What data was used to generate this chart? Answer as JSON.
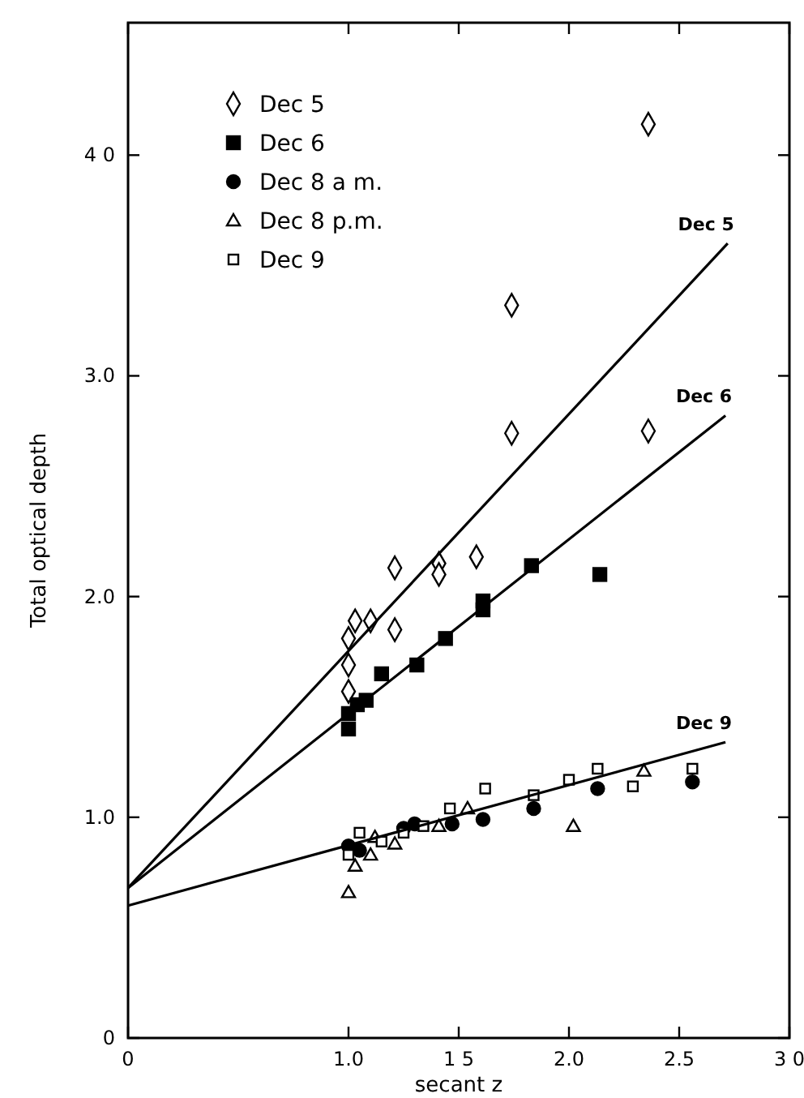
{
  "chart_data": {
    "type": "scatter",
    "xlabel": "secant z",
    "ylabel": "Total optical depth",
    "xlim": [
      0,
      3.0
    ],
    "ylim": [
      0,
      4.6
    ],
    "xticks": [
      0,
      {
        "value": 1.0,
        "label": "1.0"
      },
      {
        "value": 1.5,
        "label": "1 5"
      },
      {
        "value": 2.0,
        "label": "2.0"
      },
      2.5,
      {
        "value": 3.0,
        "label": "3 0"
      }
    ],
    "yticks": [
      0,
      {
        "value": 1.0,
        "label": "1.0"
      },
      {
        "value": 2.0,
        "label": "2.0"
      },
      {
        "value": 3.0,
        "label": "3.0"
      },
      {
        "value": 4.0,
        "label": "4 0"
      }
    ],
    "grid": false,
    "legend": "top left",
    "series": [
      {
        "name": "Dec 5",
        "color": "#000000",
        "marker": "diamond",
        "x": [
          1.0,
          1.0,
          1.0,
          1.03,
          1.1,
          1.21,
          1.21,
          1.41,
          1.41,
          1.58,
          1.74,
          1.74,
          2.36,
          2.36
        ],
        "values": [
          1.57,
          1.69,
          1.81,
          1.89,
          1.89,
          2.13,
          1.85,
          2.15,
          2.1,
          2.18,
          3.32,
          2.74,
          4.14,
          2.75
        ]
      },
      {
        "name": "Dec 6",
        "color": "#000000",
        "marker": "square",
        "x": [
          1.0,
          1.0,
          1.04,
          1.08,
          1.15,
          1.31,
          1.44,
          1.61,
          1.61,
          1.83,
          2.14
        ],
        "values": [
          1.4,
          1.47,
          1.51,
          1.53,
          1.65,
          1.69,
          1.81,
          1.98,
          1.94,
          2.14,
          2.1
        ]
      },
      {
        "name": "Dec 8 a m.",
        "color": "#000000",
        "marker": "circle",
        "x": [
          1.0,
          1.05,
          1.25,
          1.3,
          1.47,
          1.61,
          1.84,
          2.13,
          2.56
        ],
        "values": [
          0.87,
          0.85,
          0.95,
          0.97,
          0.97,
          0.99,
          1.04,
          1.13,
          1.16
        ]
      },
      {
        "name": "Dec 8 p.m.",
        "color": "#000000",
        "marker": "triangle",
        "x": [
          1.0,
          1.03,
          1.1,
          1.12,
          1.21,
          1.41,
          1.54,
          2.02,
          2.34
        ],
        "values": [
          0.66,
          0.78,
          0.83,
          0.91,
          0.88,
          0.96,
          1.04,
          0.96,
          1.21
        ]
      },
      {
        "name": "Dec 9",
        "color": "#000000",
        "marker": "square",
        "x": [
          1.0,
          1.05,
          1.15,
          1.25,
          1.34,
          1.46,
          1.62,
          1.84,
          2.0,
          2.13,
          2.29,
          2.56
        ],
        "values": [
          0.83,
          0.93,
          0.89,
          0.93,
          0.96,
          1.04,
          1.13,
          1.1,
          1.17,
          1.22,
          1.14,
          1.22
        ]
      },
      {
        "type": "line",
        "name": "Dec 5",
        "color": "#000000",
        "x": [
          0,
          2.72
        ],
        "values": [
          0.68,
          3.6
        ]
      },
      {
        "type": "line",
        "name": "Dec 6",
        "color": "#000000",
        "x": [
          0,
          2.71
        ],
        "values": [
          0.68,
          2.82
        ]
      },
      {
        "type": "line",
        "name": "Dec 9",
        "color": "#000000",
        "x": [
          0,
          2.71
        ],
        "values": [
          0.6,
          1.34
        ]
      }
    ]
  }
}
